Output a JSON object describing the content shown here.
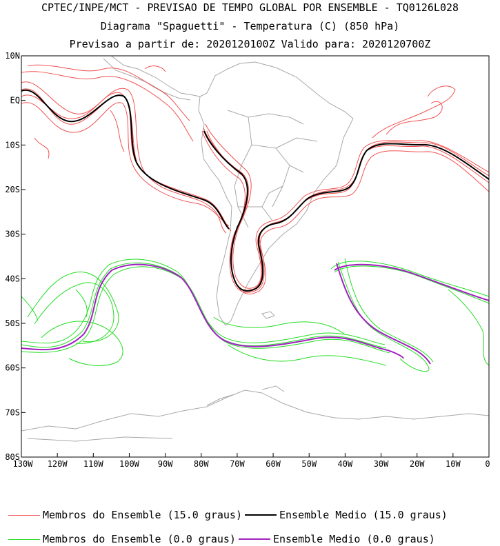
{
  "header": {
    "line1": "CPTEC/INPE/MCT - PREVISAO DE TEMPO GLOBAL POR ENSEMBLE - TQ0126L028",
    "line2": "Diagrama \"Spaguetti\" - Temperatura (C) (850 hPa)",
    "line3": "Previsao a partir de: 2020120100Z  Valido para: 2020120700Z"
  },
  "map": {
    "lat_labels": [
      "10N",
      "EQ",
      "10S",
      "20S",
      "30S",
      "40S",
      "50S",
      "60S",
      "70S",
      "80S"
    ],
    "lon_labels": [
      "130W",
      "120W",
      "110W",
      "100W",
      "90W",
      "80W",
      "70W",
      "60W",
      "50W",
      "40W",
      "30W",
      "20W",
      "10W",
      "0"
    ],
    "colors": {
      "members_15": "#f05050",
      "mean_15": "#000000",
      "members_0": "#22dd22",
      "mean_0": "#a020c0",
      "coast": "#a8a8a8"
    }
  },
  "legend": {
    "members_15_label": "Membros do Ensemble (15.0 graus)",
    "mean_15_label": "Ensemble Medio (15.0 graus)",
    "members_0_label": "Membros do Ensemble (0.0 graus)",
    "mean_0_label": "Ensemble Medio (0.0 graus)"
  }
}
